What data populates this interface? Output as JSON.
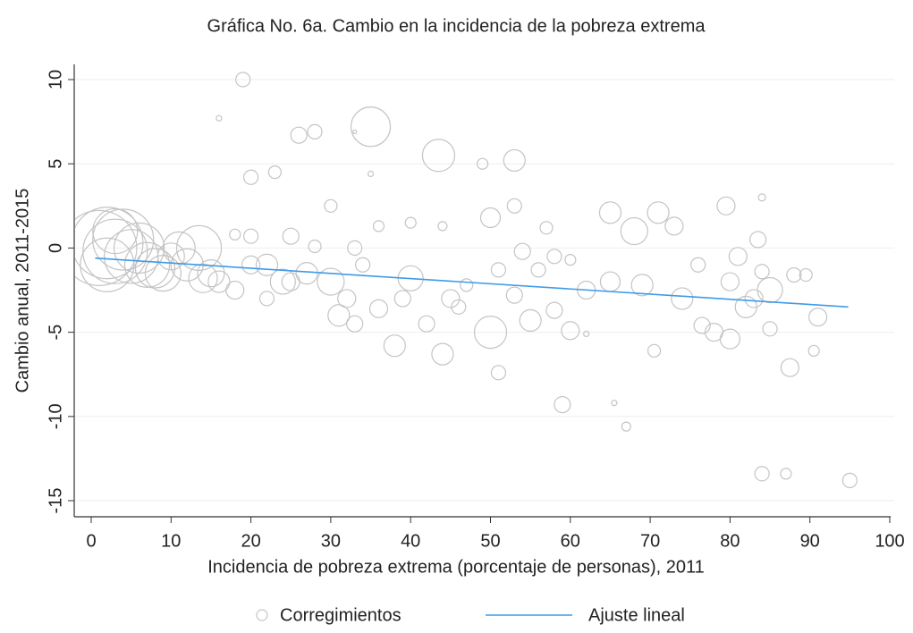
{
  "chart_data": {
    "type": "scatter",
    "title": "Gráfica No. 6a. Cambio en la incidencia de la pobreza extrema",
    "x_label": "Incidencia de pobreza extrema (porcentaje de personas), 2011",
    "y_label": "Cambio anual, 2011-2015",
    "xlim": [
      -2,
      101
    ],
    "ylim": [
      -16,
      10.8
    ],
    "xticks": [
      0,
      10,
      20,
      30,
      40,
      50,
      60,
      70,
      80,
      90,
      100
    ],
    "yticks": [
      -15,
      -10,
      -5,
      0,
      5,
      10
    ],
    "grid": true,
    "series": [
      {
        "name": "Corregimientos",
        "kind": "bubble",
        "color": "#c4c4c4",
        "x": [
          1,
          2,
          3,
          4,
          5,
          6,
          7,
          8,
          2,
          3,
          13.5,
          12,
          10,
          15,
          16,
          18,
          20,
          22,
          25,
          27,
          30,
          32,
          34,
          35,
          43.5,
          53,
          19,
          16,
          26,
          28,
          33,
          20,
          23,
          35,
          49,
          30,
          50,
          53,
          57,
          65,
          68,
          71,
          73,
          79.5,
          84,
          40,
          45,
          50,
          55,
          38,
          44,
          51,
          59,
          65.5,
          67,
          84,
          87,
          95,
          87.5,
          90.5,
          70.5,
          80,
          78,
          76.5,
          91,
          85,
          82,
          85,
          80,
          81,
          83.5,
          76,
          74,
          69,
          62,
          56,
          51,
          47,
          53,
          60,
          58,
          62,
          42,
          36,
          33,
          31,
          39,
          46,
          58,
          60,
          54,
          44,
          36,
          40,
          18,
          20,
          25,
          28,
          33,
          88,
          84,
          83,
          89.5,
          65,
          22,
          24,
          11,
          9,
          14
        ],
        "values": [
          0,
          0.3,
          -0.2,
          0.5,
          -0.5,
          0,
          -1,
          -1.2,
          -1,
          1,
          0,
          -1,
          -0.5,
          -1.5,
          -2,
          -2.5,
          -1,
          -3,
          -2,
          -1.5,
          -2,
          -3,
          -1,
          7.2,
          5.5,
          5.2,
          10,
          7.7,
          6.7,
          6.9,
          6.9,
          4.2,
          4.5,
          4.4,
          5,
          2.5,
          1.8,
          2.5,
          1.2,
          2.1,
          1,
          2.1,
          1.3,
          2.5,
          3,
          -1.8,
          -3,
          -5,
          -4.3,
          -5.8,
          -6.3,
          -7.4,
          -9.3,
          -9.2,
          -10.6,
          -13.4,
          -13.4,
          -13.8,
          -7.1,
          -6.1,
          -6.1,
          -5.4,
          -5,
          -4.6,
          -4.1,
          -4.8,
          -3.5,
          -2.5,
          -2,
          -0.5,
          0.5,
          -1,
          -3,
          -2.2,
          -2.5,
          -1.3,
          -1.3,
          -2.2,
          -2.8,
          -4.9,
          -3.7,
          -5.1,
          -4.5,
          -3.6,
          -4.5,
          -4,
          -3,
          -3.5,
          -0.5,
          -0.7,
          -0.2,
          1.3,
          1.3,
          1.5,
          0.8,
          0.7,
          0.7,
          0.1,
          0,
          -1.6,
          -1.4,
          -3,
          -1.6,
          -2,
          -1,
          -2,
          0,
          -1.5,
          -1.8
        ],
        "sizes": [
          42,
          40,
          36,
          34,
          30,
          28,
          25,
          22,
          30,
          25,
          25,
          18,
          15,
          15,
          12,
          10,
          10,
          8,
          10,
          12,
          15,
          10,
          8,
          22,
          18,
          12,
          8,
          3,
          9,
          8,
          2,
          8,
          7,
          3,
          6,
          7,
          11,
          8,
          7,
          12,
          15,
          12,
          10,
          10,
          4,
          14,
          10,
          18,
          12,
          12,
          12,
          8,
          9,
          3,
          5,
          8,
          6,
          8,
          10,
          6,
          7,
          11,
          10,
          9,
          10,
          8,
          12,
          14,
          10,
          10,
          9,
          8,
          12,
          12,
          10,
          8,
          8,
          7,
          9,
          10,
          9,
          3,
          9,
          10,
          9,
          12,
          9,
          8,
          8,
          6,
          9,
          5,
          6,
          6,
          6,
          8,
          9,
          7,
          8,
          8,
          8,
          10,
          7,
          11,
          12,
          14,
          18,
          20,
          16
        ]
      },
      {
        "name": "Ajuste lineal",
        "kind": "line",
        "color": "#3d9be9",
        "x": [
          0.5,
          94.8
        ],
        "values": [
          -0.6,
          -3.5
        ]
      }
    ]
  }
}
